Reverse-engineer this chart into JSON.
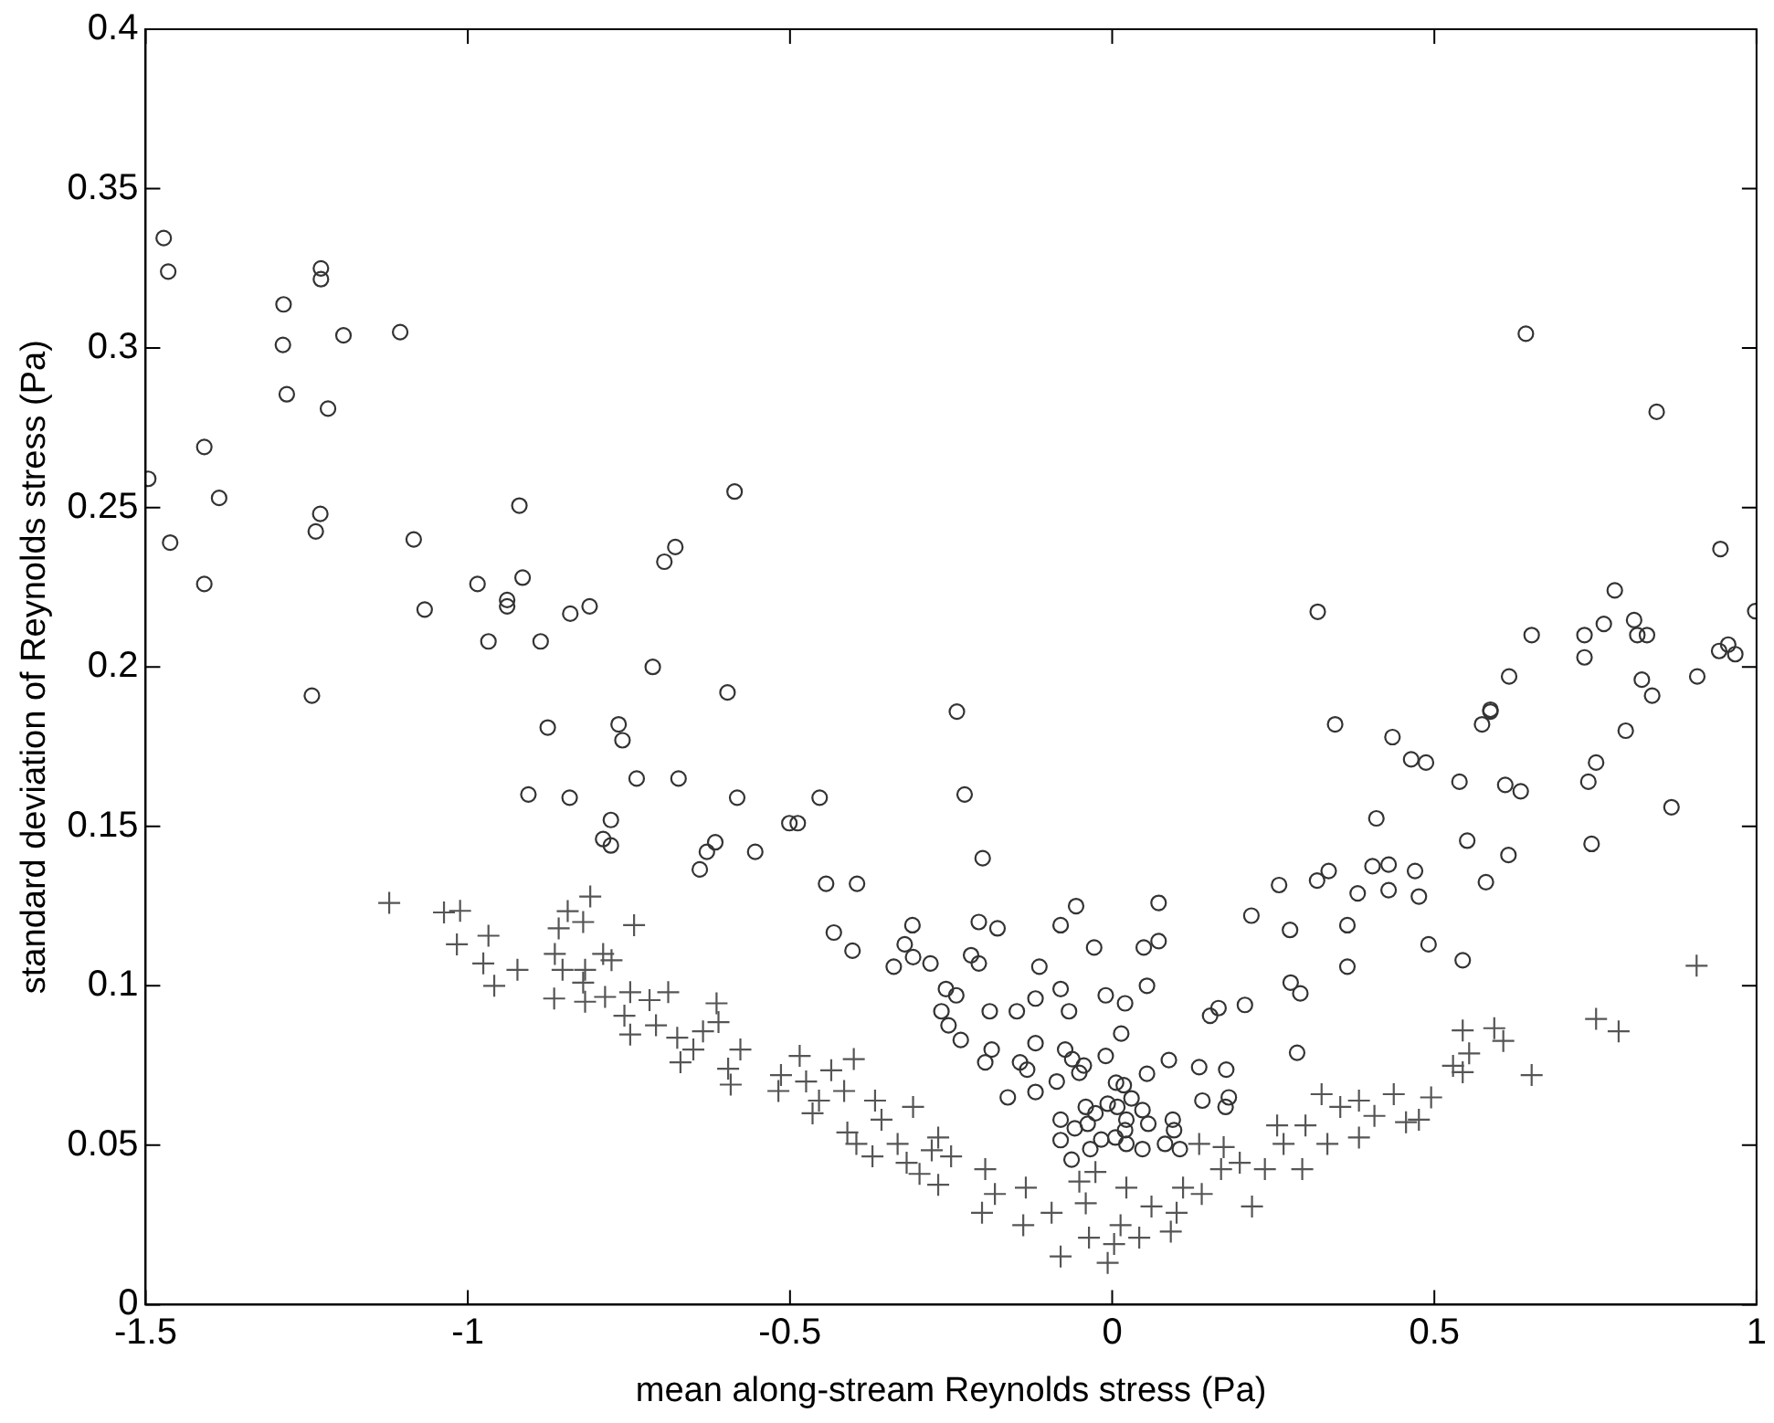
{
  "chart_data": {
    "type": "scatter",
    "xlabel": "mean along-stream Reynolds stress (Pa)",
    "ylabel": "standard deviation of Reynolds stress (Pa)",
    "xlim": [
      -1.5,
      1
    ],
    "xticks": [
      -1.5,
      -1,
      -0.5,
      0,
      0.5,
      1
    ],
    "ylim": [
      0,
      0.4
    ],
    "yticks": [
      0,
      0.05,
      0.1,
      0.15,
      0.2,
      0.25,
      0.3,
      0.35,
      0.4
    ],
    "grid": false,
    "legend": false,
    "series": [
      {
        "color": "#333333",
        "marker": "circle",
        "x": [
          -1.472,
          -1.465,
          -1.286,
          -1.228,
          -1.228,
          -1.193,
          -1.105,
          -1.287,
          -1.281,
          -1.217,
          -1.409,
          -1.496,
          -1.386,
          -1.229,
          -1.236,
          -1.462,
          -1.409,
          -1.242,
          -1.084,
          -0.92,
          -0.586,
          -0.985,
          -0.915,
          -0.939,
          -0.939,
          -1.067,
          -0.968,
          -0.887,
          -0.841,
          -0.811,
          -0.678,
          -0.695,
          -0.713,
          -0.597,
          -0.876,
          -0.766,
          -0.76,
          -0.738,
          -0.673,
          -0.906,
          -0.842,
          -0.582,
          -0.454,
          -0.778,
          -0.79,
          -0.778,
          -0.501,
          -0.488,
          -0.616,
          -0.629,
          -0.554,
          -0.64,
          -0.444,
          -0.396,
          -0.432,
          -0.31,
          -0.322,
          -0.309,
          -0.403,
          -0.339,
          -0.282,
          -0.241,
          -0.229,
          -0.201,
          -0.207,
          -0.178,
          -0.219,
          -0.207,
          -0.258,
          -0.242,
          -0.265,
          -0.254,
          -0.235,
          -0.19,
          -0.148,
          -0.119,
          -0.113,
          -0.08,
          -0.056,
          -0.028,
          -0.08,
          -0.067,
          -0.01,
          0.02,
          0.054,
          0.049,
          0.072,
          0.072,
          0.014,
          -0.187,
          -0.197,
          -0.143,
          -0.132,
          -0.119,
          -0.073,
          -0.062,
          -0.051,
          -0.044,
          -0.01,
          -0.162,
          -0.119,
          -0.086,
          0.054,
          0.088,
          0.135,
          0.177,
          0.14,
          0.181,
          0.176,
          0.152,
          0.165,
          0.206,
          0.277,
          0.292,
          0.287,
          0.216,
          0.259,
          0.276,
          0.318,
          0.336,
          0.365,
          0.365,
          0.381,
          0.404,
          0.429,
          0.429,
          0.47,
          0.476,
          0.491,
          0.544,
          0.551,
          0.58,
          0.615,
          0.41,
          0.346,
          0.435,
          0.464,
          0.487,
          0.539,
          0.61,
          0.634,
          0.574,
          0.587,
          0.797,
          0.739,
          0.751,
          0.744,
          0.868,
          -0.08,
          -0.08,
          -0.063,
          -0.034,
          -0.041,
          -0.026,
          -0.007,
          0.006,
          0.018,
          0.03,
          0.008,
          0.022,
          0.047,
          0.056,
          -0.017,
          0.005,
          0.022,
          0.047,
          0.082,
          0.094,
          0.096,
          0.105,
          -0.058,
          -0.038,
          0.02,
          0.642,
          0.845,
          0.944,
          0.78,
          0.998,
          0.319,
          0.651,
          0.733,
          0.763,
          0.81,
          0.815,
          0.83,
          0.733,
          0.942,
          0.956,
          0.967,
          0.616,
          0.822,
          0.838,
          0.908,
          0.587
        ],
        "values": [
          0.3345,
          0.324,
          0.3137,
          0.325,
          0.3216,
          0.304,
          0.305,
          0.301,
          0.2855,
          0.281,
          0.269,
          0.259,
          0.253,
          0.248,
          0.2425,
          0.239,
          0.226,
          0.191,
          0.24,
          0.2506,
          0.255,
          0.226,
          0.228,
          0.221,
          0.219,
          0.218,
          0.208,
          0.208,
          0.2167,
          0.219,
          0.2376,
          0.233,
          0.2,
          0.192,
          0.181,
          0.182,
          0.177,
          0.165,
          0.165,
          0.16,
          0.159,
          0.159,
          0.159,
          0.152,
          0.146,
          0.144,
          0.151,
          0.151,
          0.145,
          0.142,
          0.142,
          0.1365,
          0.132,
          0.132,
          0.1167,
          0.119,
          0.113,
          0.109,
          0.111,
          0.106,
          0.107,
          0.186,
          0.16,
          0.14,
          0.12,
          0.118,
          0.1096,
          0.107,
          0.099,
          0.097,
          0.092,
          0.0876,
          0.083,
          0.092,
          0.092,
          0.096,
          0.106,
          0.119,
          0.125,
          0.112,
          0.099,
          0.092,
          0.097,
          0.0945,
          0.1,
          0.112,
          0.114,
          0.126,
          0.085,
          0.08,
          0.076,
          0.076,
          0.0737,
          0.082,
          0.08,
          0.077,
          0.0727,
          0.075,
          0.078,
          0.065,
          0.0667,
          0.07,
          0.0724,
          0.0767,
          0.0745,
          0.0737,
          0.064,
          0.065,
          0.062,
          0.0906,
          0.093,
          0.094,
          0.101,
          0.0976,
          0.079,
          0.122,
          0.1316,
          0.1175,
          0.133,
          0.136,
          0.119,
          0.106,
          0.129,
          0.1375,
          0.138,
          0.13,
          0.136,
          0.128,
          0.113,
          0.108,
          0.1455,
          0.1325,
          0.141,
          0.1525,
          0.182,
          0.178,
          0.171,
          0.17,
          0.164,
          0.163,
          0.161,
          0.182,
          0.186,
          0.18,
          0.164,
          0.17,
          0.1445,
          0.156,
          0.058,
          0.0516,
          0.0455,
          0.0488,
          0.062,
          0.06,
          0.063,
          0.0696,
          0.0688,
          0.0647,
          0.062,
          0.058,
          0.061,
          0.0567,
          0.0518,
          0.0524,
          0.0504,
          0.0488,
          0.0504,
          0.058,
          0.0547,
          0.0488,
          0.0553,
          0.0567,
          0.0547,
          0.3045,
          0.28,
          0.237,
          0.224,
          0.2175,
          0.2173,
          0.21,
          0.21,
          0.2135,
          0.2147,
          0.21,
          0.21,
          0.203,
          0.205,
          0.207,
          0.204,
          0.197,
          0.196,
          0.191,
          0.197,
          0.1866
        ]
      },
      {
        "color": "#555555",
        "marker": "cross",
        "x": [
          -1.122,
          -1.037,
          -1.012,
          -1.017,
          -0.968,
          -0.976,
          -0.923,
          -0.959,
          -0.866,
          -0.865,
          -0.859,
          -0.845,
          -0.81,
          -0.821,
          -0.853,
          -0.818,
          -0.821,
          -0.818,
          -0.79,
          -0.777,
          -0.742,
          -0.787,
          -0.757,
          -0.748,
          -0.748,
          -0.718,
          -0.689,
          -0.708,
          -0.675,
          -0.67,
          -0.65,
          -0.635,
          -0.614,
          -0.611,
          -0.596,
          -0.592,
          -0.577,
          -0.514,
          -0.518,
          -0.485,
          -0.475,
          -0.465,
          -0.455,
          -0.436,
          -0.416,
          -0.401,
          -0.411,
          -0.397,
          -0.368,
          -0.372,
          -0.358,
          -0.333,
          -0.309,
          -0.319,
          -0.299,
          -0.28,
          -0.27,
          -0.27,
          -0.25,
          -0.197,
          -0.202,
          -0.182,
          -0.134,
          -0.138,
          -0.094,
          -0.08,
          -0.051,
          -0.026,
          -0.041,
          -0.036,
          -0.007,
          0.003,
          0.022,
          0.013,
          0.042,
          0.061,
          0.091,
          0.11,
          0.1,
          0.135,
          0.139,
          0.169,
          0.173,
          0.198,
          0.217,
          0.237,
          0.256,
          0.266,
          0.295,
          0.3,
          0.325,
          0.334,
          0.354,
          0.383,
          0.383,
          0.407,
          0.437,
          0.456,
          0.476,
          0.495,
          0.529,
          0.544,
          0.554,
          0.544,
          0.593,
          0.607,
          0.651,
          0.751,
          0.786,
          0.907
        ],
        "values": [
          0.126,
          0.123,
          0.1235,
          0.113,
          0.1157,
          0.107,
          0.105,
          0.1,
          0.096,
          0.11,
          0.118,
          0.1234,
          0.128,
          0.12,
          0.105,
          0.105,
          0.101,
          0.095,
          0.11,
          0.108,
          0.119,
          0.0965,
          0.0906,
          0.0847,
          0.098,
          0.0955,
          0.098,
          0.0876,
          0.0837,
          0.076,
          0.08,
          0.0857,
          0.0945,
          0.0886,
          0.074,
          0.069,
          0.08,
          0.072,
          0.067,
          0.078,
          0.07,
          0.06,
          0.064,
          0.0735,
          0.067,
          0.077,
          0.054,
          0.0504,
          0.064,
          0.0465,
          0.058,
          0.0504,
          0.062,
          0.0445,
          0.041,
          0.0484,
          0.0376,
          0.0524,
          0.0465,
          0.0425,
          0.0288,
          0.0347,
          0.0367,
          0.0249,
          0.0288,
          0.0151,
          0.0386,
          0.0416,
          0.0318,
          0.021,
          0.0131,
          0.019,
          0.0367,
          0.0249,
          0.021,
          0.0308,
          0.0229,
          0.0367,
          0.0288,
          0.0504,
          0.0347,
          0.0425,
          0.0494,
          0.0445,
          0.0308,
          0.0425,
          0.0562,
          0.0504,
          0.0425,
          0.0562,
          0.066,
          0.0504,
          0.062,
          0.0524,
          0.064,
          0.0592,
          0.066,
          0.0572,
          0.058,
          0.065,
          0.0749,
          0.086,
          0.0788,
          0.0729,
          0.0867,
          0.0827,
          0.072,
          0.0896,
          0.0857,
          0.1063
        ]
      }
    ]
  }
}
